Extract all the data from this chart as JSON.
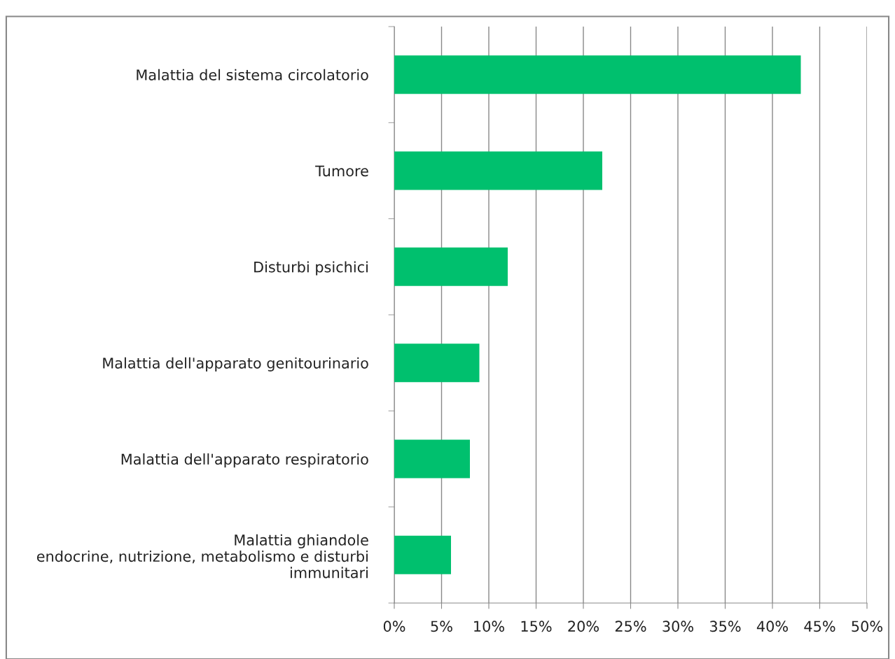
{
  "chart_data": {
    "type": "bar",
    "orientation": "horizontal",
    "categories": [
      "Malattia del sistema circolatorio",
      "Tumore",
      "Disturbi psichici",
      "Malattia dell'apparato genitourinario",
      "Malattia dell'apparato respiratorio",
      "Malattia ghiandole\nendocrine, nutrizione, metabolismo e disturbi\nimmunitari"
    ],
    "values": [
      43,
      22,
      12,
      9,
      8,
      6
    ],
    "color": "#00c06e",
    "xlim": [
      0,
      50
    ],
    "xticks": [
      {
        "value": 0,
        "label": "0%"
      },
      {
        "value": 5,
        "label": "5%"
      },
      {
        "value": 10,
        "label": "10%"
      },
      {
        "value": 15,
        "label": "15%"
      },
      {
        "value": 20,
        "label": "20%"
      },
      {
        "value": 25,
        "label": "25%"
      },
      {
        "value": 30,
        "label": "30%"
      },
      {
        "value": 35,
        "label": "35%"
      },
      {
        "value": 40,
        "label": "40%"
      },
      {
        "value": 45,
        "label": "45%"
      },
      {
        "value": 50,
        "label": "50%"
      }
    ],
    "grid": "x"
  }
}
